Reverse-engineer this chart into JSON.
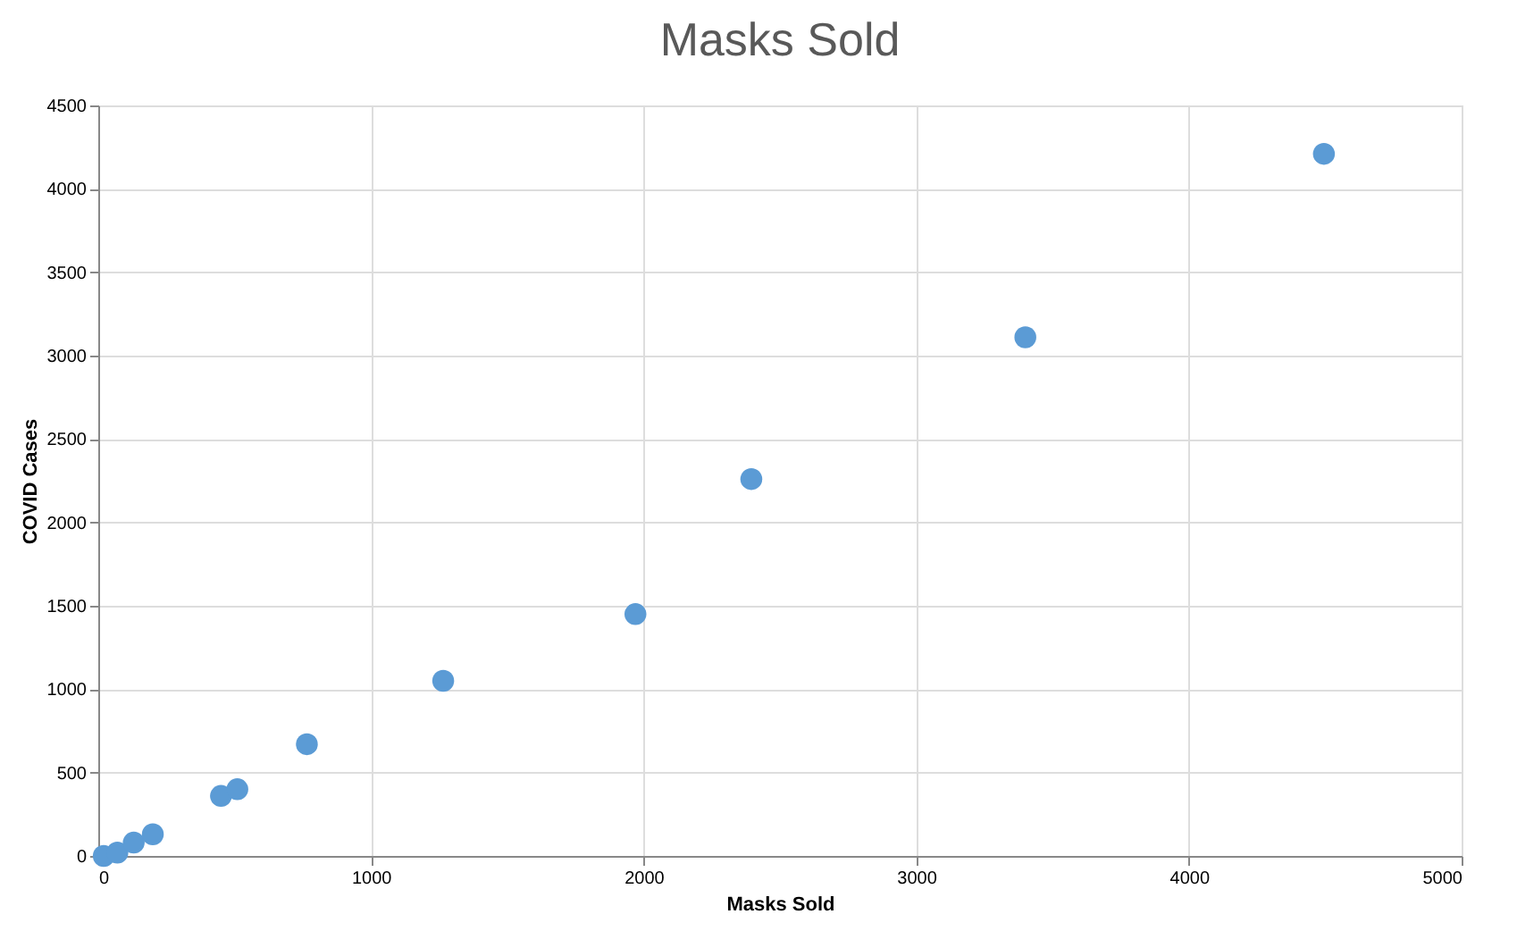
{
  "chart_data": {
    "type": "scatter",
    "title": "Masks Sold",
    "xlabel": "Masks Sold",
    "ylabel": "COVID Cases",
    "x": [
      20,
      70,
      130,
      200,
      450,
      510,
      765,
      1265,
      1970,
      2395,
      3400,
      4495
    ],
    "series": [
      {
        "color": "#5b9bd5",
        "values": [
          0,
          20,
          80,
          130,
          360,
          400,
          670,
          1050,
          1450,
          2260,
          3110,
          4210
        ]
      }
    ],
    "xlim": [
      0,
      5000
    ],
    "xticks": [
      0,
      1000,
      2000,
      3000,
      4000,
      5000
    ],
    "ylim": [
      0,
      4500
    ],
    "yticks": [
      0,
      500,
      1000,
      1500,
      2000,
      2500,
      3000,
      3500,
      4000,
      4500
    ],
    "grid": true,
    "marker": "circle"
  }
}
